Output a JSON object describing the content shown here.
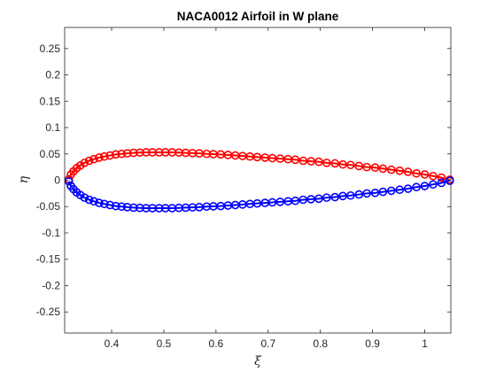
{
  "chart_data": {
    "type": "line",
    "title": "NACA0012 Airfoil in W plane",
    "xlabel": "ξ",
    "ylabel": "η",
    "xlim": [
      0.31,
      1.05
    ],
    "ylim": [
      -0.29,
      0.29
    ],
    "xticks": [
      0.4,
      0.5,
      0.6,
      0.7,
      0.8,
      0.9,
      1
    ],
    "xtick_labels": [
      "0.4",
      "0.5",
      "0.6",
      "0.7",
      "0.8",
      "0.9",
      "1"
    ],
    "yticks": [
      -0.25,
      -0.2,
      -0.15,
      -0.1,
      -0.05,
      0,
      0.05,
      0.1,
      0.15,
      0.2,
      0.25
    ],
    "ytick_labels": [
      "-0.25",
      "-0.2",
      "-0.15",
      "-0.1",
      "-0.05",
      "0",
      "0.05",
      "0.1",
      "0.15",
      "0.2",
      "0.25"
    ],
    "grid": false,
    "legend": "none",
    "series": [
      {
        "color": "#ff0000",
        "marker": "circle",
        "x": [
          0.318,
          0.322,
          0.327,
          0.333,
          0.34,
          0.348,
          0.357,
          0.366,
          0.376,
          0.386,
          0.397,
          0.408,
          0.419,
          0.43,
          0.442,
          0.454,
          0.466,
          0.478,
          0.491,
          0.503,
          0.516,
          0.529,
          0.542,
          0.555,
          0.568,
          0.582,
          0.595,
          0.609,
          0.623,
          0.637,
          0.651,
          0.665,
          0.679,
          0.694,
          0.708,
          0.723,
          0.738,
          0.752,
          0.767,
          0.782,
          0.797,
          0.812,
          0.828,
          0.843,
          0.858,
          0.874,
          0.889,
          0.905,
          0.92,
          0.936,
          0.952,
          0.968,
          0.984,
          1.0,
          1.016,
          1.032,
          1.048
        ],
        "y": [
          0.002,
          0.011,
          0.017,
          0.023,
          0.028,
          0.033,
          0.037,
          0.04,
          0.043,
          0.045,
          0.047,
          0.049,
          0.05,
          0.051,
          0.052,
          0.0525,
          0.053,
          0.053,
          0.053,
          0.053,
          0.053,
          0.0525,
          0.052,
          0.0515,
          0.051,
          0.05,
          0.0495,
          0.049,
          0.048,
          0.047,
          0.046,
          0.045,
          0.044,
          0.043,
          0.042,
          0.041,
          0.04,
          0.039,
          0.037,
          0.036,
          0.035,
          0.033,
          0.032,
          0.03,
          0.029,
          0.027,
          0.025,
          0.024,
          0.022,
          0.02,
          0.018,
          0.016,
          0.013,
          0.011,
          0.008,
          0.005,
          0.001
        ]
      },
      {
        "color": "#0000ff",
        "marker": "circle",
        "x": [
          0.318,
          0.322,
          0.327,
          0.333,
          0.34,
          0.348,
          0.357,
          0.366,
          0.376,
          0.386,
          0.397,
          0.408,
          0.419,
          0.43,
          0.442,
          0.454,
          0.466,
          0.478,
          0.491,
          0.503,
          0.516,
          0.529,
          0.542,
          0.555,
          0.568,
          0.582,
          0.595,
          0.609,
          0.623,
          0.637,
          0.651,
          0.665,
          0.679,
          0.694,
          0.708,
          0.723,
          0.738,
          0.752,
          0.767,
          0.782,
          0.797,
          0.812,
          0.828,
          0.843,
          0.858,
          0.874,
          0.889,
          0.905,
          0.92,
          0.936,
          0.952,
          0.968,
          0.984,
          1.0,
          1.016,
          1.032,
          1.048
        ],
        "y": [
          -0.002,
          -0.011,
          -0.017,
          -0.023,
          -0.028,
          -0.033,
          -0.037,
          -0.04,
          -0.043,
          -0.045,
          -0.047,
          -0.049,
          -0.05,
          -0.051,
          -0.052,
          -0.0525,
          -0.053,
          -0.053,
          -0.053,
          -0.053,
          -0.053,
          -0.0525,
          -0.052,
          -0.0515,
          -0.051,
          -0.05,
          -0.0495,
          -0.049,
          -0.048,
          -0.047,
          -0.046,
          -0.045,
          -0.044,
          -0.043,
          -0.042,
          -0.041,
          -0.04,
          -0.039,
          -0.037,
          -0.036,
          -0.035,
          -0.033,
          -0.032,
          -0.03,
          -0.029,
          -0.027,
          -0.025,
          -0.024,
          -0.022,
          -0.02,
          -0.018,
          -0.016,
          -0.013,
          -0.011,
          -0.008,
          -0.005,
          -0.001
        ]
      }
    ]
  }
}
